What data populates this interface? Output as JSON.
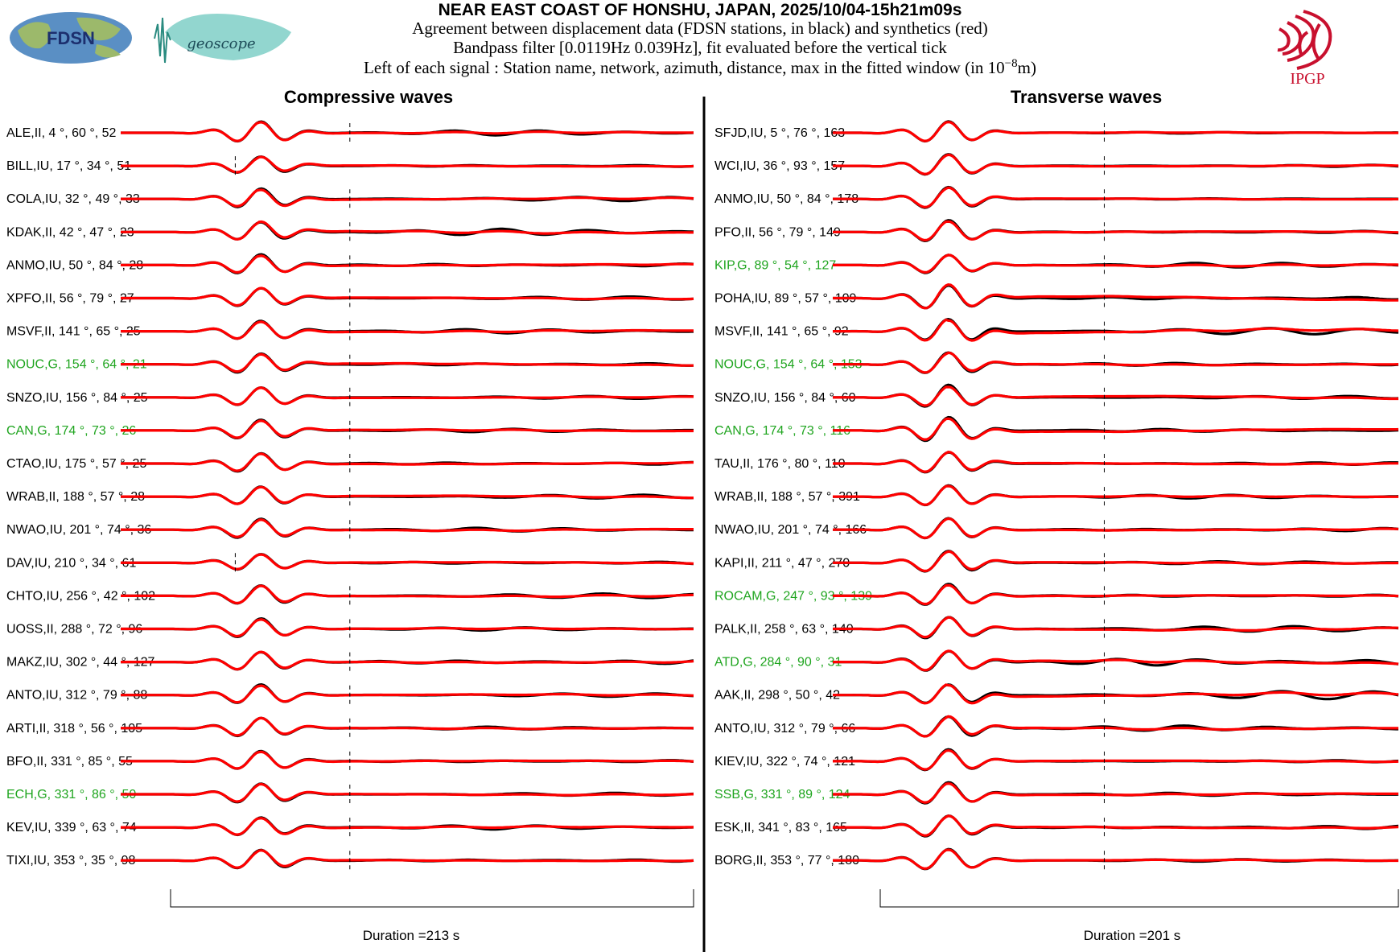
{
  "header": {
    "title": "NEAR EAST COAST OF HONSHU, JAPAN, 2025/10/04-15h21m09s",
    "line1": "Agreement between displacement data (FDSN stations, in black) and synthetics (red)",
    "line2": "Bandpass filter [0.0119Hz 0.039Hz], fit evaluated before the vertical tick",
    "line3_prefix": "Left of each signal : Station name, network, azimuth, distance, max in the fitted window (in 10",
    "line3_exp": "−8",
    "line3_suffix": "m)"
  },
  "logos": {
    "fdsn": "FDSN",
    "geoscope": "geoscope",
    "ipgp": "IPGP"
  },
  "colors": {
    "data": "#000000",
    "synthetic": "#ff0000",
    "highlight_label": "#1fa51f",
    "logo_ipgp": "#c8102e",
    "logo_geoscope": "#7fcfc7",
    "logo_fdsn": "#3a7fbf"
  },
  "chart_data": [
    {
      "type": "line",
      "title": "Compressive waves",
      "duration_label": "Duration =213 s",
      "series_colors": {
        "data": "black",
        "synthetic": "red"
      },
      "stations": [
        {
          "label": "ALE,II, 4 °, 60 °, 52",
          "highlight": false,
          "tick": 0.4,
          "amp": 0.9,
          "post": 0.55,
          "misfit": 0.1
        },
        {
          "label": "BILL,IU, 17 °, 34 °, 51",
          "highlight": false,
          "tick": 0.2,
          "amp": 0.7,
          "post": 0.25,
          "misfit": 0.12
        },
        {
          "label": "COLA,IU, 32 °, 49 °, 33",
          "highlight": false,
          "tick": 0.4,
          "amp": 0.8,
          "post": 0.45,
          "misfit": 0.18
        },
        {
          "label": "KDAK,II, 42 °, 47 °, 23",
          "highlight": false,
          "tick": 0.4,
          "amp": 0.8,
          "post": 0.7,
          "misfit": 0.2
        },
        {
          "label": "ANMO,IU, 50 °, 84 °, 28",
          "highlight": false,
          "tick": 0.4,
          "amp": 0.8,
          "post": 0.4,
          "misfit": 0.15
        },
        {
          "label": "XPFO,II, 56 °, 79 °, 27",
          "highlight": false,
          "tick": 0.4,
          "amp": 0.8,
          "post": 0.35,
          "misfit": 0.14
        },
        {
          "label": "MSVF,II, 141 °, 65 °, 25",
          "highlight": false,
          "tick": 0.4,
          "amp": 0.8,
          "post": 0.45,
          "misfit": 0.18
        },
        {
          "label": "NOUC,G, 154 °, 64 °, 21",
          "highlight": true,
          "tick": 0.4,
          "amp": 0.8,
          "post": 0.35,
          "misfit": 0.2
        },
        {
          "label": "SNZO,IU, 156 °, 84 °, 25",
          "highlight": false,
          "tick": 0.4,
          "amp": 0.8,
          "post": 0.3,
          "misfit": 0.12
        },
        {
          "label": "CAN,G, 174 °, 73 °, 26",
          "highlight": true,
          "tick": 0.4,
          "amp": 0.8,
          "post": 0.35,
          "misfit": 0.16
        },
        {
          "label": "CTAO,IU, 175 °, 57 °, 25",
          "highlight": false,
          "tick": 0.4,
          "amp": 0.8,
          "post": 0.35,
          "misfit": 0.16
        },
        {
          "label": "WRAB,II, 188 °, 57 °, 28",
          "highlight": false,
          "tick": 0.4,
          "amp": 0.8,
          "post": 0.4,
          "misfit": 0.2
        },
        {
          "label": "NWAO,IU, 201 °, 74 °, 36",
          "highlight": false,
          "tick": 0.4,
          "amp": 0.8,
          "post": 0.4,
          "misfit": 0.18
        },
        {
          "label": "DAV,IU, 210 °, 34 °, 61",
          "highlight": false,
          "tick": 0.2,
          "amp": 0.7,
          "post": 0.3,
          "misfit": 0.14
        },
        {
          "label": "CHTO,IU, 256 °, 42 °, 102",
          "highlight": false,
          "tick": 0.4,
          "amp": 0.8,
          "post": 0.5,
          "misfit": 0.12
        },
        {
          "label": "UOSS,II, 288 °, 72 °, 96",
          "highlight": false,
          "tick": 0.4,
          "amp": 0.8,
          "post": 0.35,
          "misfit": 0.12
        },
        {
          "label": "MAKZ,IU, 302 °, 44 °, 127",
          "highlight": false,
          "tick": 0.4,
          "amp": 0.8,
          "post": 0.55,
          "misfit": 0.12
        },
        {
          "label": "ANTO,IU, 312 °, 79 °, 88",
          "highlight": false,
          "tick": 0.4,
          "amp": 0.8,
          "post": 0.35,
          "misfit": 0.12
        },
        {
          "label": "ARTI,II, 318 °, 56 °, 105",
          "highlight": false,
          "tick": 0.4,
          "amp": 0.8,
          "post": 0.3,
          "misfit": 0.1
        },
        {
          "label": "BFO,II, 331 °, 85 °, 55",
          "highlight": false,
          "tick": 0.4,
          "amp": 0.8,
          "post": 0.3,
          "misfit": 0.1
        },
        {
          "label": "ECH,G, 331 °, 86 °, 50",
          "highlight": true,
          "tick": 0.4,
          "amp": 0.8,
          "post": 0.3,
          "misfit": 0.12
        },
        {
          "label": "KEV,IU, 339 °, 63 °, 74",
          "highlight": false,
          "tick": 0.4,
          "amp": 0.8,
          "post": 0.45,
          "misfit": 0.14
        },
        {
          "label": "TIXI,IU, 353 °, 35 °, 98",
          "highlight": false,
          "tick": 0.4,
          "amp": 0.8,
          "post": 0.3,
          "misfit": 0.1
        }
      ]
    },
    {
      "type": "line",
      "title": "Transverse waves",
      "duration_label": "Duration =201 s",
      "series_colors": {
        "data": "black",
        "synthetic": "red"
      },
      "stations": [
        {
          "label": "SFJD,IU, 5 °, 76 °, 163",
          "highlight": false,
          "tick": 0.48,
          "amp": 0.9,
          "post": 0.15,
          "misfit": 0.08
        },
        {
          "label": "WCI,IU, 36 °, 93 °, 157",
          "highlight": false,
          "tick": 0.48,
          "amp": 0.9,
          "post": 0.2,
          "misfit": 0.1
        },
        {
          "label": "ANMO,IU, 50 °, 84 °, 178",
          "highlight": false,
          "tick": 0.48,
          "amp": 0.9,
          "post": 0.1,
          "misfit": 0.1
        },
        {
          "label": "PFO,II, 56 °, 79 °, 149",
          "highlight": false,
          "tick": 0.48,
          "amp": 0.9,
          "post": 0.25,
          "misfit": 0.12
        },
        {
          "label": "KIP,G, 89 °, 54 °, 127",
          "highlight": true,
          "tick": 0.48,
          "amp": 0.8,
          "post": 0.5,
          "misfit": 0.14
        },
        {
          "label": "POHA,IU, 89 °, 57 °, 109",
          "highlight": false,
          "tick": 0.48,
          "amp": 1.1,
          "post": 0.35,
          "misfit": 0.45
        },
        {
          "label": "MSVF,II, 141 °, 65 °, 92",
          "highlight": false,
          "tick": 0.48,
          "amp": 1.0,
          "post": 0.7,
          "misfit": 0.45
        },
        {
          "label": "NOUC,G, 154 °, 64 °, 153",
          "highlight": true,
          "tick": 0.48,
          "amp": 0.9,
          "post": 0.35,
          "misfit": 0.15
        },
        {
          "label": "SNZO,IU, 156 °, 84 °, 60",
          "highlight": false,
          "tick": 0.48,
          "amp": 0.9,
          "post": 0.3,
          "misfit": 0.3
        },
        {
          "label": "CAN,G, 174 °, 73 °, 116",
          "highlight": true,
          "tick": 0.48,
          "amp": 1.0,
          "post": 0.3,
          "misfit": 0.3
        },
        {
          "label": "TAU,II, 176 °, 80 °, 110",
          "highlight": false,
          "tick": 0.48,
          "amp": 0.9,
          "post": 0.25,
          "misfit": 0.15
        },
        {
          "label": "WRAB,II, 188 °, 57 °, 391",
          "highlight": false,
          "tick": 0.48,
          "amp": 0.9,
          "post": 0.4,
          "misfit": 0.12
        },
        {
          "label": "NWAO,IU, 201 °, 74 °, 166",
          "highlight": false,
          "tick": 0.48,
          "amp": 0.9,
          "post": 0.35,
          "misfit": 0.12
        },
        {
          "label": "KAPI,II, 211 °, 47 °, 270",
          "highlight": false,
          "tick": 0.48,
          "amp": 0.9,
          "post": 0.3,
          "misfit": 0.12
        },
        {
          "label": "ROCAM,G, 247 °, 93 °, 139",
          "highlight": true,
          "tick": 0.48,
          "amp": 0.9,
          "post": 0.3,
          "misfit": 0.1
        },
        {
          "label": "PALK,II, 258 °, 63 °, 140",
          "highlight": false,
          "tick": 0.48,
          "amp": 0.9,
          "post": 0.6,
          "misfit": 0.25
        },
        {
          "label": "ATD,G, 284 °, 90 °, 31",
          "highlight": true,
          "tick": 0.48,
          "amp": 0.9,
          "post": 0.9,
          "misfit": 0.3
        },
        {
          "label": "AAK,II, 298 °, 50 °, 42",
          "highlight": false,
          "tick": 0.48,
          "amp": 0.9,
          "post": 0.9,
          "misfit": 0.35
        },
        {
          "label": "ANTO,IU, 312 °, 79 °, 66",
          "highlight": false,
          "tick": 0.48,
          "amp": 0.9,
          "post": 0.6,
          "misfit": 0.2
        },
        {
          "label": "KIEV,IU, 322 °, 74 °, 121",
          "highlight": false,
          "tick": 0.48,
          "amp": 0.9,
          "post": 0.2,
          "misfit": 0.12
        },
        {
          "label": "SSB,G, 331 °, 89 °, 124",
          "highlight": true,
          "tick": 0.48,
          "amp": 0.9,
          "post": 0.3,
          "misfit": 0.15
        },
        {
          "label": "ESK,II, 341 °, 83 °, 165",
          "highlight": false,
          "tick": 0.48,
          "amp": 0.9,
          "post": 0.35,
          "misfit": 0.14
        },
        {
          "label": "BORG,II, 353 °, 77 °, 180",
          "highlight": false,
          "tick": 0.48,
          "amp": 0.9,
          "post": 0.25,
          "misfit": 0.1
        }
      ]
    }
  ]
}
